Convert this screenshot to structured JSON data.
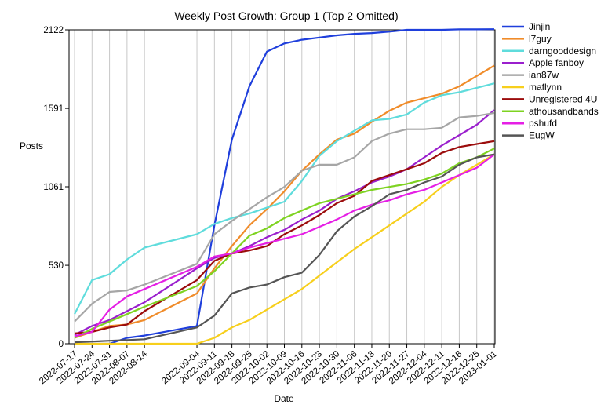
{
  "chart_data": {
    "type": "line",
    "title": "Weekly Post Growth: Group 1 (Top 2 Omitted)",
    "xlabel": "Date",
    "ylabel": "Posts",
    "ylim": [
      0,
      2122
    ],
    "yticks": [
      0,
      530,
      1061,
      1591,
      2122
    ],
    "grid": "vertical",
    "legend_position": "right",
    "categories": [
      "2022-07-17",
      "2022-07-24",
      "2022-07-31",
      "2022-08-07",
      "2022-08-14",
      "2022-09-04",
      "2022-09-11",
      "2022-09-18",
      "2022-09-25",
      "2022-10-02",
      "2022-10-09",
      "2022-10-16",
      "2022-10-23",
      "2022-10-30",
      "2022-11-06",
      "2022-11-13",
      "2022-11-20",
      "2022-11-27",
      "2022-12-04",
      "2022-12-11",
      "2022-12-18",
      "2022-12-25",
      "2023-01-01"
    ],
    "series": [
      {
        "name": "Jinjin",
        "color": "#1f3fdc",
        "values": [
          0,
          0,
          0,
          40,
          55,
          120,
          800,
          1380,
          1740,
          1975,
          2030,
          2055,
          2070,
          2085,
          2095,
          2100,
          2110,
          2122,
          2122,
          2122,
          2125,
          2125,
          2126
        ]
      },
      {
        "name": "l7guy",
        "color": "#f08c2a",
        "values": [
          40,
          80,
          120,
          130,
          160,
          340,
          510,
          660,
          800,
          910,
          1030,
          1170,
          1280,
          1380,
          1420,
          1500,
          1575,
          1630,
          1660,
          1690,
          1740,
          1810,
          1880
        ]
      },
      {
        "name": "darngooddesign",
        "color": "#5fdcdc",
        "values": [
          200,
          430,
          470,
          570,
          650,
          740,
          810,
          850,
          880,
          920,
          960,
          1100,
          1270,
          1370,
          1440,
          1510,
          1520,
          1550,
          1630,
          1680,
          1700,
          1730,
          1760
        ]
      },
      {
        "name": "Apple fanboy",
        "color": "#9a1fcd",
        "values": [
          60,
          120,
          160,
          220,
          280,
          510,
          580,
          610,
          660,
          720,
          770,
          840,
          900,
          980,
          1030,
          1090,
          1130,
          1180,
          1260,
          1340,
          1410,
          1480,
          1580
        ]
      },
      {
        "name": "ian87w",
        "color": "#a6a6a6",
        "values": [
          150,
          270,
          350,
          360,
          400,
          540,
          740,
          830,
          910,
          990,
          1060,
          1170,
          1210,
          1210,
          1260,
          1370,
          1420,
          1450,
          1450,
          1460,
          1530,
          1540,
          1560
        ]
      },
      {
        "name": "maflynn",
        "color": "#f7cf1c",
        "values": [
          0,
          0,
          0,
          0,
          0,
          0,
          40,
          110,
          160,
          230,
          300,
          370,
          460,
          550,
          640,
          720,
          800,
          880,
          960,
          1060,
          1140,
          1210,
          1280
        ]
      },
      {
        "name": "Unregistered 4U",
        "color": "#9b0c0c",
        "values": [
          70,
          80,
          110,
          130,
          220,
          430,
          560,
          610,
          630,
          660,
          740,
          800,
          870,
          950,
          1000,
          1100,
          1140,
          1180,
          1220,
          1290,
          1330,
          1350,
          1370
        ]
      },
      {
        "name": "athousandbands",
        "color": "#7ed321",
        "values": [
          40,
          100,
          150,
          200,
          250,
          390,
          490,
          610,
          730,
          780,
          850,
          900,
          950,
          980,
          1010,
          1040,
          1060,
          1080,
          1110,
          1150,
          1220,
          1260,
          1320
        ]
      },
      {
        "name": "pshufd",
        "color": "#e51fe5",
        "values": [
          50,
          80,
          230,
          320,
          370,
          520,
          590,
          610,
          650,
          680,
          710,
          740,
          790,
          840,
          900,
          940,
          970,
          1010,
          1040,
          1090,
          1140,
          1190,
          1280
        ]
      },
      {
        "name": "EugW",
        "color": "#555555",
        "values": [
          10,
          15,
          20,
          25,
          30,
          110,
          190,
          340,
          380,
          400,
          450,
          480,
          600,
          760,
          860,
          930,
          1010,
          1040,
          1090,
          1130,
          1210,
          1260,
          1280
        ]
      }
    ]
  }
}
